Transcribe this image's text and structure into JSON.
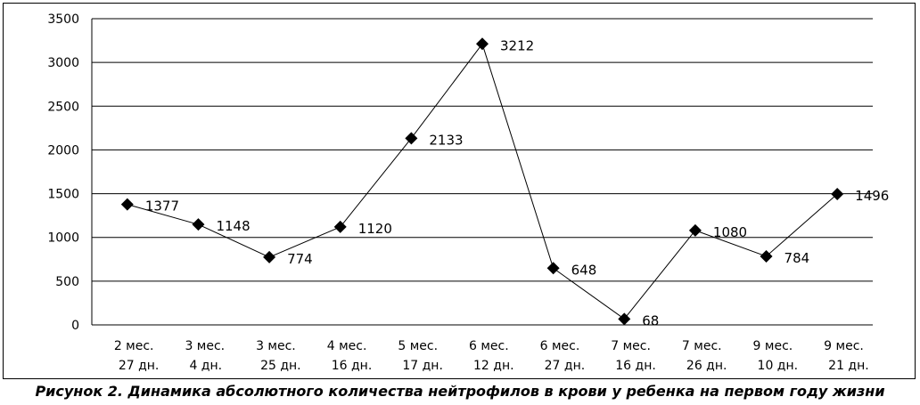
{
  "caption": "Рисунок 2. Динамика абсолютного количества нейтрофилов в крови у ребенка на первом году жизни",
  "chart_data": {
    "type": "line",
    "title": "",
    "xlabel": "",
    "ylabel": "",
    "ylim": [
      0,
      3500
    ],
    "yticks": [
      0,
      500,
      1000,
      1500,
      2000,
      2500,
      3000,
      3500
    ],
    "grid": true,
    "legend": "none",
    "marker": "diamond",
    "line_color": "#000000",
    "categories": [
      [
        "2 мес.",
        "27 дн."
      ],
      [
        "3 мес.",
        "4 дн."
      ],
      [
        "3 мес.",
        "25 дн."
      ],
      [
        "4 мес.",
        "16 дн."
      ],
      [
        "5 мес.",
        "17 дн."
      ],
      [
        "6 мес.",
        "12 дн."
      ],
      [
        "6 мес.",
        "27 дн."
      ],
      [
        "7 мес.",
        "16 дн."
      ],
      [
        "7 мес.",
        "26 дн."
      ],
      [
        "9 мес.",
        "10 дн."
      ],
      [
        "9 мес.",
        "21 дн."
      ]
    ],
    "values": [
      1377,
      1148,
      774,
      1120,
      2133,
      3212,
      648,
      68,
      1080,
      784,
      1496
    ],
    "data_labels": [
      "1377",
      "1148",
      "774",
      "1120",
      "2133",
      "3212",
      "648",
      "68",
      "1080",
      "784",
      "1496"
    ]
  }
}
